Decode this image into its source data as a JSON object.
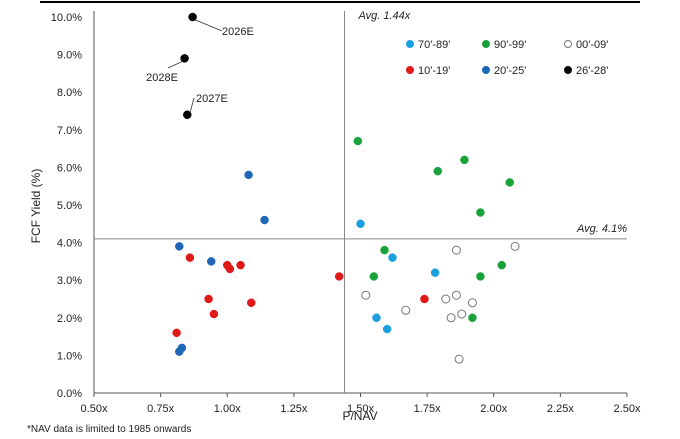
{
  "chart_data": {
    "type": "scatter",
    "xlabel": "P/NAV",
    "ylabel": "FCF Yield (%)",
    "xlim": [
      0.5,
      2.5
    ],
    "ylim": [
      0.0,
      10.0
    ],
    "x_ticks": [
      "0.50x",
      "0.75x",
      "1.00x",
      "1.25x",
      "1.50x",
      "1.75x",
      "2.00x",
      "2.25x",
      "2.50x"
    ],
    "y_ticks": [
      "0.0%",
      "1.0%",
      "2.0%",
      "3.0%",
      "4.0%",
      "5.0%",
      "6.0%",
      "7.0%",
      "8.0%",
      "9.0%",
      "10.0%"
    ],
    "grid": false,
    "legend_position": "top-right",
    "avg_x": 1.44,
    "avg_x_label": "Avg. 1.44x",
    "avg_y": 4.1,
    "avg_y_label": "Avg. 4.1%",
    "series": [
      {
        "name": "70'-89'",
        "color": "#1aa0e0",
        "marker": "filled",
        "points": [
          [
            1.5,
            4.5
          ],
          [
            1.56,
            2.0
          ],
          [
            1.6,
            1.7
          ],
          [
            1.62,
            3.6
          ],
          [
            1.78,
            3.2
          ]
        ]
      },
      {
        "name": "90'-99'",
        "color": "#1aa23a",
        "marker": "filled",
        "points": [
          [
            1.49,
            6.7
          ],
          [
            1.55,
            3.1
          ],
          [
            1.59,
            3.8
          ],
          [
            1.79,
            5.9
          ],
          [
            1.89,
            6.2
          ],
          [
            1.92,
            2.0
          ],
          [
            1.95,
            3.1
          ],
          [
            1.95,
            4.8
          ],
          [
            2.03,
            3.4
          ],
          [
            2.06,
            5.6
          ]
        ]
      },
      {
        "name": "00'-09'",
        "color": "#9a9a9a",
        "marker": "hollow",
        "points": [
          [
            1.52,
            2.6
          ],
          [
            1.67,
            2.2
          ],
          [
            1.82,
            2.5
          ],
          [
            1.84,
            2.0
          ],
          [
            1.86,
            3.8
          ],
          [
            1.86,
            2.6
          ],
          [
            1.87,
            0.9
          ],
          [
            1.88,
            2.1
          ],
          [
            1.92,
            2.4
          ],
          [
            2.08,
            3.9
          ]
        ]
      },
      {
        "name": "10'-19'",
        "color": "#e01818",
        "marker": "filled",
        "points": [
          [
            0.81,
            1.6
          ],
          [
            0.86,
            3.6
          ],
          [
            0.93,
            2.5
          ],
          [
            0.95,
            2.1
          ],
          [
            1.0,
            3.4
          ],
          [
            1.01,
            3.3
          ],
          [
            1.05,
            3.4
          ],
          [
            1.09,
            2.4
          ],
          [
            1.42,
            3.1
          ],
          [
            1.74,
            2.5
          ]
        ]
      },
      {
        "name": "20'-25'",
        "color": "#1f68b8",
        "marker": "filled",
        "points": [
          [
            0.82,
            3.9
          ],
          [
            0.82,
            1.1
          ],
          [
            0.83,
            1.2
          ],
          [
            0.94,
            3.5
          ],
          [
            1.08,
            5.8
          ],
          [
            1.14,
            4.6
          ]
        ]
      },
      {
        "name": "26'-28'",
        "color": "#000000",
        "marker": "filled",
        "points": [
          [
            0.87,
            10.0,
            "2026E"
          ],
          [
            0.84,
            8.9,
            "2028E"
          ],
          [
            0.85,
            7.4,
            "2027E"
          ]
        ]
      }
    ]
  },
  "footnote": "*NAV data is limited to 1985 onwards"
}
